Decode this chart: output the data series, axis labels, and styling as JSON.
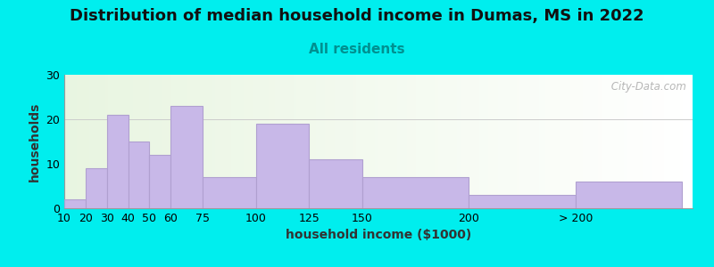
{
  "title": "Distribution of median household income in Dumas, MS in 2022",
  "subtitle": "All residents",
  "xlabel": "household income ($1000)",
  "ylabel": "households",
  "background_outer": "#00EEEE",
  "bar_color": "#c8b8e8",
  "bar_edge_color": "#b0a0d0",
  "categories": [
    "10",
    "20",
    "30",
    "40",
    "50",
    "60",
    "75",
    "100",
    "125",
    "150",
    "200",
    "> 200"
  ],
  "values": [
    2,
    9,
    21,
    15,
    12,
    23,
    7,
    19,
    11,
    7,
    3,
    6
  ],
  "bar_widths": [
    10,
    10,
    10,
    10,
    10,
    15,
    25,
    25,
    25,
    50,
    50,
    50
  ],
  "bar_lefts": [
    10,
    20,
    30,
    40,
    50,
    60,
    75,
    100,
    125,
    150,
    200,
    250
  ],
  "xlim": [
    10,
    305
  ],
  "ylim": [
    0,
    30
  ],
  "yticks": [
    0,
    10,
    20,
    30
  ],
  "title_fontsize": 13,
  "subtitle_fontsize": 11,
  "label_fontsize": 10,
  "tick_fontsize": 9,
  "watermark": " City-Data.com"
}
